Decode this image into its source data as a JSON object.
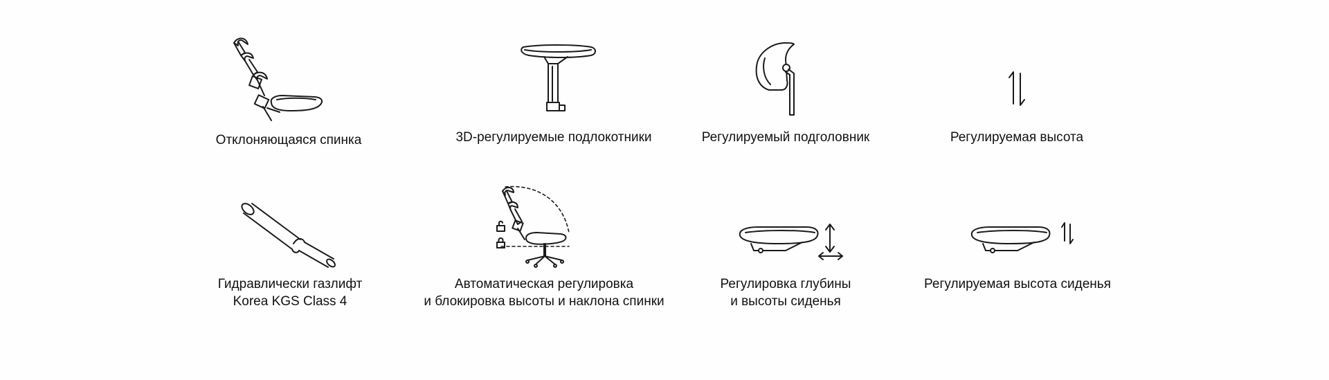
{
  "features": {
    "reclining_back": {
      "icon": "reclining-backrest-icon",
      "label": "Отклоняющаяся спинка"
    },
    "armrests": {
      "icon": "armrest-3d-icon",
      "label": "3D-регулируемые подлокотники"
    },
    "headrest": {
      "icon": "headrest-icon",
      "label": "Регулируемый подголовник"
    },
    "height": {
      "icon": "height-arrows-icon",
      "label": "Регулируемая высота"
    },
    "gaslift": {
      "icon": "gas-lift-cylinder-icon",
      "line1": "Гидравлически газлифт",
      "line2": "Korea KGS Class 4"
    },
    "auto_lock": {
      "icon": "tilt-lock-chair-icon",
      "line1": "Автоматическая регулировка",
      "line2": "и блокировка высоты и наклона спинки"
    },
    "seat_depth": {
      "icon": "seat-depth-icon",
      "line1": "Регулировка глубины",
      "line2": "и высоты сиденья"
    },
    "seat_height": {
      "icon": "seat-height-icon",
      "label": "Регулируемая высота сиденья"
    }
  },
  "colors": {
    "background": "#fefefe",
    "line": "#1a1a1a",
    "text": "#111111"
  }
}
